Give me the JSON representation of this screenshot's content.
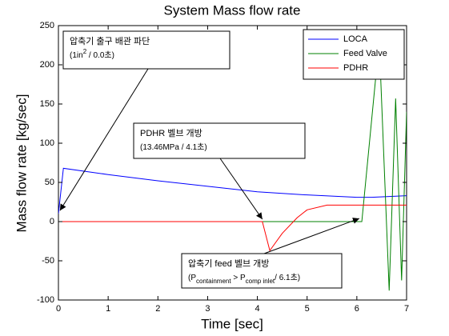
{
  "chart_data": {
    "type": "line",
    "title": "System Mass flow rate",
    "xlabel": "Time [sec]",
    "ylabel": "Mass flow rate [kg/sec]",
    "xlim": [
      0,
      7
    ],
    "xticks": [
      0,
      1,
      2,
      3,
      4,
      5,
      6,
      7
    ],
    "ylim": [
      -100,
      250
    ],
    "yticks": [
      -100,
      -50,
      0,
      50,
      100,
      150,
      200,
      250
    ],
    "legend": "upper right",
    "series": [
      {
        "name": "LOCA",
        "color": "#0000ff",
        "x": [
          0,
          0.1,
          1,
          2,
          3,
          4,
          5,
          6,
          6.3,
          7
        ],
        "values": [
          10,
          68,
          60,
          52,
          45,
          38,
          34,
          31,
          31,
          33
        ]
      },
      {
        "name": "Feed Valve",
        "color": "#008000",
        "x": [
          0,
          6.1,
          6.45,
          6.65,
          6.78,
          6.9,
          7
        ],
        "values": [
          0,
          0,
          230,
          -88,
          157,
          -75,
          140
        ]
      },
      {
        "name": "PDHR",
        "color": "#ff0000",
        "x": [
          0,
          4.1,
          4.25,
          4.5,
          4.8,
          5.0,
          5.4,
          7
        ],
        "values": [
          0,
          0,
          -37,
          -15,
          5,
          15,
          21,
          21
        ]
      }
    ],
    "annotations": [
      {
        "lines": [
          [
            "압축기 출구 배관 파단"
          ],
          [
            "(1in",
            "2",
            " / 0.0초)"
          ]
        ],
        "script": "super"
      },
      {
        "lines": [
          [
            "PDHR  벨브  개방"
          ],
          [
            "(13.46MPa  / 4.1초)"
          ]
        ]
      },
      {
        "lines": [
          [
            "압축기 feed 벨브 개방"
          ],
          [
            "(P",
            "containment",
            " > P",
            "comp inlet",
            "/ 6.1초)"
          ]
        ],
        "script": "sub"
      }
    ]
  }
}
